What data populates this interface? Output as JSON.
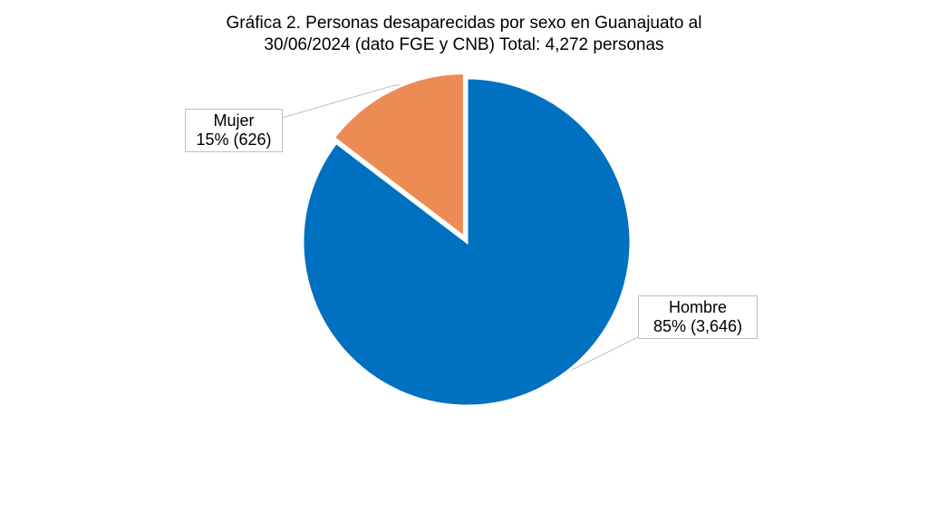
{
  "chart_data": {
    "type": "pie",
    "title": "Gráfica 2. Personas desaparecidas por sexo en Guanajuato al 30/06/2024 (dato FGE y CNB) Total: 4,272 personas",
    "title_lines": [
      "Gráfica 2. Personas desaparecidas por sexo en Guanajuato al",
      "30/06/2024 (dato FGE y CNB) Total: 4,272 personas"
    ],
    "slices": [
      {
        "name": "Hombre",
        "value": 3646,
        "percent_label": "85% (3,646)",
        "color": "#0070C0"
      },
      {
        "name": "Mujer",
        "value": 626,
        "percent_label": "15% (626)",
        "color": "#ED8B55"
      }
    ],
    "legend": "none",
    "data_labels": "callout"
  }
}
